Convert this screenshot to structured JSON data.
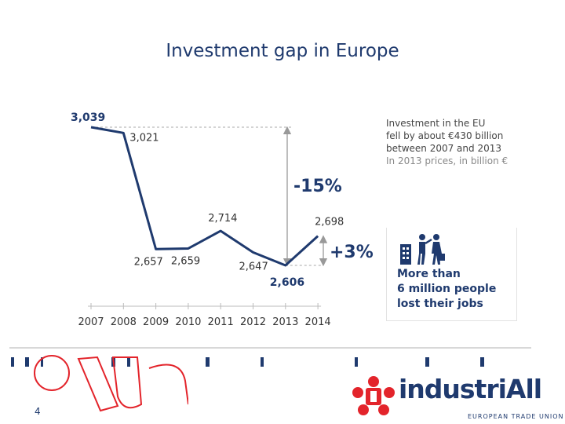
{
  "slide": {
    "title": "Investment gap in Europe",
    "page_number": "4"
  },
  "note": {
    "line1": "Investment in the EU",
    "line2": "fell by about €430 billion",
    "line3": "between 2007 and 2013",
    "line4": "In 2013 prices, in billion €"
  },
  "jobs_callout": {
    "line1": "More than",
    "line2": "6 million people",
    "line3": "lost their jobs",
    "icon": "people-leaving-office-icon"
  },
  "logo": {
    "name": "industriAll",
    "subtitle": "EUROPEAN TRADE UNION",
    "icon": "industriall-star-icon"
  },
  "colors": {
    "line": "#1f3a6e",
    "accent": "#1f3a6e",
    "logo_red": "#e3242b",
    "guide": "#aaaaaa"
  },
  "chart_data": {
    "type": "line",
    "title": "",
    "xlabel": "",
    "ylabel": "",
    "categories": [
      "2007",
      "2008",
      "2009",
      "2010",
      "2011",
      "2012",
      "2013",
      "2014"
    ],
    "values": [
      3039,
      3021,
      2657,
      2659,
      2714,
      2647,
      2606,
      2698
    ],
    "data_labels": [
      "3,039",
      "3,021",
      "2,657",
      "2,659",
      "2,714",
      "2,647",
      "2,606",
      "2,698"
    ],
    "annotations": [
      {
        "label": "-15%",
        "from": "2007",
        "to": "2013"
      },
      {
        "label": "+3%",
        "from": "2013",
        "to": "2014"
      }
    ],
    "grid": false,
    "legend": "none"
  }
}
